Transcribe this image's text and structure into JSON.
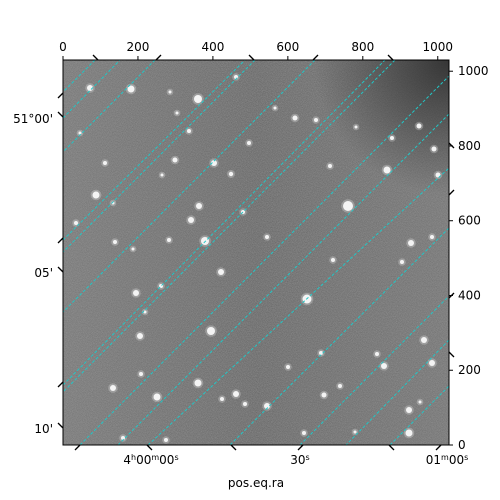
{
  "figure": {
    "xlabel": "pos.eq.ra",
    "image_colormap": "gray",
    "grid_color": "#22c6c6"
  },
  "axes": {
    "top": {
      "ticks": [
        "0",
        "200",
        "400",
        "600",
        "800",
        "1000"
      ],
      "values": [
        0,
        200,
        400,
        600,
        800,
        1000
      ],
      "range": [
        0,
        1030
      ]
    },
    "right": {
      "ticks": [
        "0",
        "200",
        "400",
        "600",
        "800",
        "1000"
      ],
      "values": [
        0,
        200,
        400,
        600,
        800,
        1000
      ],
      "range": [
        0,
        1030
      ]
    },
    "left_dec": {
      "ticks": [
        "51°00'",
        "05'",
        "10'"
      ]
    },
    "bottom_ra": {
      "ticks": [
        "4h00m00s",
        "30s",
        "01m00s"
      ]
    }
  }
}
